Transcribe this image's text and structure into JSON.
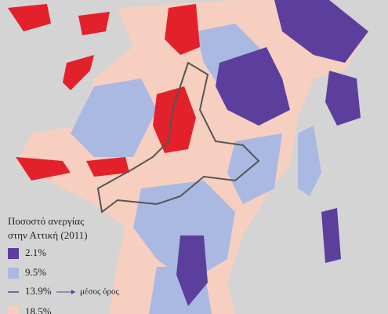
{
  "legend": {
    "title_lines": [
      "Ποσοστό ανεργίας",
      "στην Αττική (2011)"
    ],
    "items": [
      "2.1%",
      "9.5%",
      "13.9%",
      "18.5%"
    ],
    "mean_label": "μέσος όρος"
  }
}
